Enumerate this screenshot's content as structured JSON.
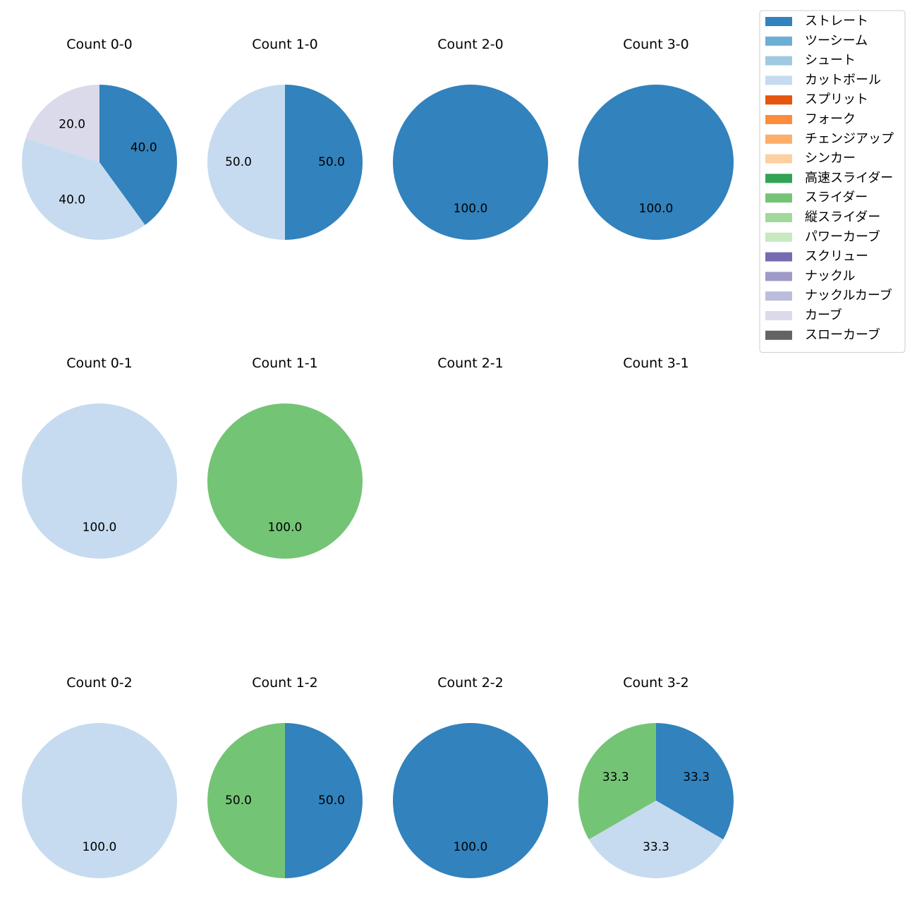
{
  "chart_data": {
    "type": "pie",
    "legend": {
      "placement": "top-right",
      "entries": [
        {
          "name": "ストレート",
          "color": "#3182bd"
        },
        {
          "name": "ツーシーム",
          "color": "#6baed6"
        },
        {
          "name": "シュート",
          "color": "#9ecae1"
        },
        {
          "name": "カットボール",
          "color": "#c6dbef"
        },
        {
          "name": "スプリット",
          "color": "#e6550d"
        },
        {
          "name": "フォーク",
          "color": "#fd8d3c"
        },
        {
          "name": "チェンジアップ",
          "color": "#fdae6b"
        },
        {
          "name": "シンカー",
          "color": "#fdd0a2"
        },
        {
          "name": "高速スライダー",
          "color": "#31a354"
        },
        {
          "name": "スライダー",
          "color": "#74c476"
        },
        {
          "name": "縦スライダー",
          "color": "#a1d99b"
        },
        {
          "name": "パワーカーブ",
          "color": "#c7e9c0"
        },
        {
          "name": "スクリュー",
          "color": "#756bb1"
        },
        {
          "name": "ナックル",
          "color": "#9e9ac8"
        },
        {
          "name": "ナックルカーブ",
          "color": "#bcbddc"
        },
        {
          "name": "カーブ",
          "color": "#dadaeb"
        },
        {
          "name": "スローカーブ",
          "color": "#636363"
        }
      ]
    },
    "pies": [
      {
        "title": "Count 0-0",
        "slices": [
          {
            "pitch": "ストレート",
            "value": 40.0,
            "label": "40.0"
          },
          {
            "pitch": "カットボール",
            "value": 40.0,
            "label": "40.0"
          },
          {
            "pitch": "カーブ",
            "value": 20.0,
            "label": "20.0"
          }
        ]
      },
      {
        "title": "Count 1-0",
        "slices": [
          {
            "pitch": "ストレート",
            "value": 50.0,
            "label": "50.0"
          },
          {
            "pitch": "カットボール",
            "value": 50.0,
            "label": "50.0"
          }
        ]
      },
      {
        "title": "Count 2-0",
        "slices": [
          {
            "pitch": "ストレート",
            "value": 100.0,
            "label": "100.0"
          }
        ]
      },
      {
        "title": "Count 3-0",
        "slices": [
          {
            "pitch": "ストレート",
            "value": 100.0,
            "label": "100.0"
          }
        ]
      },
      {
        "title": "Count 0-1",
        "slices": [
          {
            "pitch": "カットボール",
            "value": 100.0,
            "label": "100.0"
          }
        ]
      },
      {
        "title": "Count 1-1",
        "slices": [
          {
            "pitch": "スライダー",
            "value": 100.0,
            "label": "100.0"
          }
        ]
      },
      {
        "title": "Count 2-1",
        "slices": []
      },
      {
        "title": "Count 3-1",
        "slices": []
      },
      {
        "title": "Count 0-2",
        "slices": [
          {
            "pitch": "カットボール",
            "value": 100.0,
            "label": "100.0"
          }
        ]
      },
      {
        "title": "Count 1-2",
        "slices": [
          {
            "pitch": "ストレート",
            "value": 50.0,
            "label": "50.0"
          },
          {
            "pitch": "スライダー",
            "value": 50.0,
            "label": "50.0"
          }
        ]
      },
      {
        "title": "Count 2-2",
        "slices": [
          {
            "pitch": "ストレート",
            "value": 100.0,
            "label": "100.0"
          }
        ]
      },
      {
        "title": "Count 3-2",
        "slices": [
          {
            "pitch": "ストレート",
            "value": 33.3,
            "label": "33.3"
          },
          {
            "pitch": "カットボール",
            "value": 33.3,
            "label": "33.3"
          },
          {
            "pitch": "スライダー",
            "value": 33.3,
            "label": "33.3"
          }
        ]
      }
    ]
  }
}
